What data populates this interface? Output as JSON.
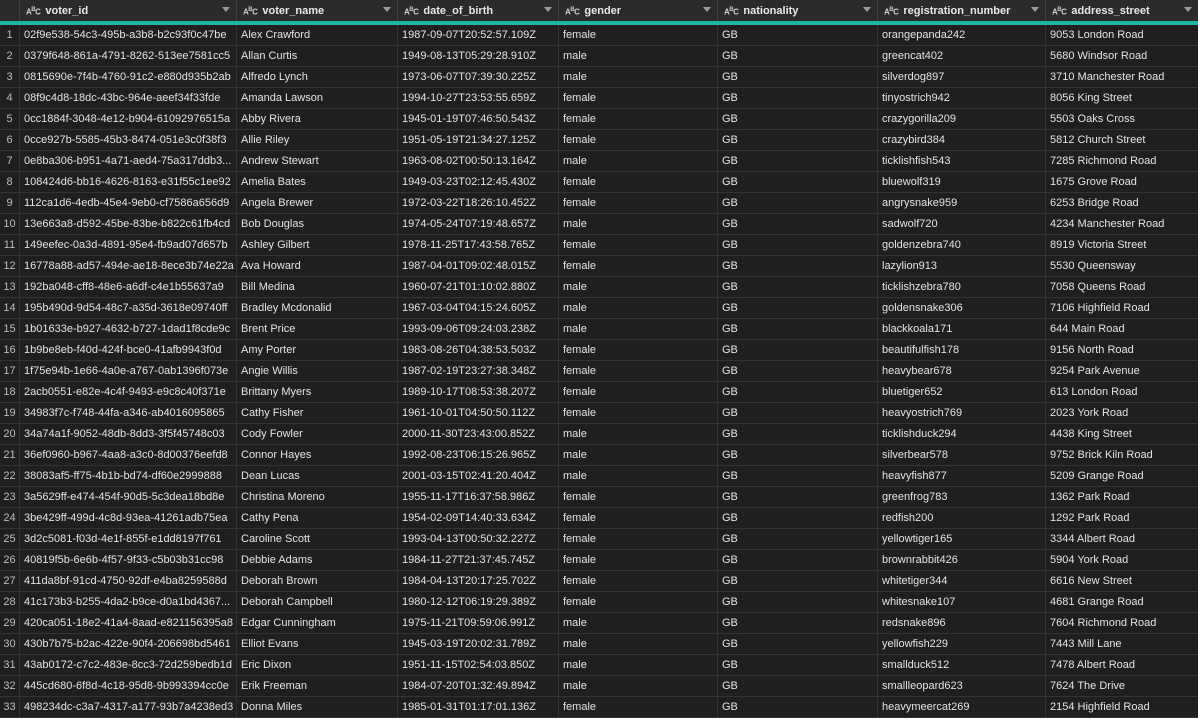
{
  "columns": [
    {
      "name": "voter_id",
      "type_icon": "ABC"
    },
    {
      "name": "voter_name",
      "type_icon": "ABC"
    },
    {
      "name": "date_of_birth",
      "type_icon": "ABC"
    },
    {
      "name": "gender",
      "type_icon": "ABC"
    },
    {
      "name": "nationality",
      "type_icon": "ABC"
    },
    {
      "name": "registration_number",
      "type_icon": "ABC"
    },
    {
      "name": "address_street",
      "type_icon": "ABC"
    }
  ],
  "rows": [
    [
      "1",
      "02f9e538-54c3-495b-a3b8-b2c93f0c47be",
      "Alex Crawford",
      "1987-09-07T20:52:57.109Z",
      "female",
      "GB",
      "orangepanda242",
      "9053 London Road"
    ],
    [
      "2",
      "0379f648-861a-4791-8262-513ee7581cc5",
      "Allan Curtis",
      "1949-08-13T05:29:28.910Z",
      "male",
      "GB",
      "greencat402",
      "5680 Windsor Road"
    ],
    [
      "3",
      "0815690e-7f4b-4760-91c2-e880d935b2ab",
      "Alfredo Lynch",
      "1973-06-07T07:39:30.225Z",
      "male",
      "GB",
      "silverdog897",
      "3710 Manchester Road"
    ],
    [
      "4",
      "08f9c4d8-18dc-43bc-964e-aeef34f33fde",
      "Amanda Lawson",
      "1994-10-27T23:53:55.659Z",
      "female",
      "GB",
      "tinyostrich942",
      "8056 King Street"
    ],
    [
      "5",
      "0cc1884f-3048-4e12-b904-61092976515a",
      "Abby Rivera",
      "1945-01-19T07:46:50.543Z",
      "female",
      "GB",
      "crazygorilla209",
      "5503 Oaks Cross"
    ],
    [
      "6",
      "0cce927b-5585-45b3-8474-051e3c0f38f3",
      "Allie Riley",
      "1951-05-19T21:34:27.125Z",
      "female",
      "GB",
      "crazybird384",
      "5812 Church Street"
    ],
    [
      "7",
      "0e8ba306-b951-4a71-aed4-75a317ddb3...",
      "Andrew Stewart",
      "1963-08-02T00:50:13.164Z",
      "male",
      "GB",
      "ticklishfish543",
      "7285 Richmond Road"
    ],
    [
      "8",
      "108424d6-bb16-4626-8163-e31f55c1ee92",
      "Amelia Bates",
      "1949-03-23T02:12:45.430Z",
      "female",
      "GB",
      "bluewolf319",
      "1675 Grove Road"
    ],
    [
      "9",
      "112ca1d6-4edb-45e4-9eb0-cf7586a656d9",
      "Angela Brewer",
      "1972-03-22T18:26:10.452Z",
      "female",
      "GB",
      "angrysnake959",
      "6253 Bridge Road"
    ],
    [
      "10",
      "13e663a8-d592-45be-83be-b822c61fb4cd",
      "Bob Douglas",
      "1974-05-24T07:19:48.657Z",
      "male",
      "GB",
      "sadwolf720",
      "4234 Manchester Road"
    ],
    [
      "11",
      "149eefec-0a3d-4891-95e4-fb9ad07d657b",
      "Ashley Gilbert",
      "1978-11-25T17:43:58.765Z",
      "female",
      "GB",
      "goldenzebra740",
      "8919 Victoria Street"
    ],
    [
      "12",
      "16778a88-ad57-494e-ae18-8ece3b74e22a",
      "Ava Howard",
      "1987-04-01T09:02:48.015Z",
      "female",
      "GB",
      "lazylion913",
      "5530 Queensway"
    ],
    [
      "13",
      "192ba048-cff8-48e6-a6df-c4e1b55637a9",
      "Bill Medina",
      "1960-07-21T01:10:02.880Z",
      "male",
      "GB",
      "ticklishzebra780",
      "7058 Queens Road"
    ],
    [
      "14",
      "195b490d-9d54-48c7-a35d-3618e09740ff",
      "Bradley Mcdonalid",
      "1967-03-04T04:15:24.605Z",
      "male",
      "GB",
      "goldensnake306",
      "7106 Highfield Road"
    ],
    [
      "15",
      "1b01633e-b927-4632-b727-1dad1f8cde9c",
      "Brent Price",
      "1993-09-06T09:24:03.238Z",
      "male",
      "GB",
      "blackkoala171",
      "644 Main Road"
    ],
    [
      "16",
      "1b9be8eb-f40d-424f-bce0-41afb9943f0d",
      "Amy Porter",
      "1983-08-26T04:38:53.503Z",
      "female",
      "GB",
      "beautifulfish178",
      "9156 North Road"
    ],
    [
      "17",
      "1f75e94b-1e66-4a0e-a767-0ab1396f073e",
      "Angie Willis",
      "1987-02-19T23:27:38.348Z",
      "female",
      "GB",
      "heavybear678",
      "9254 Park Avenue"
    ],
    [
      "18",
      "2acb0551-e82e-4c4f-9493-e9c8c40f371e",
      "Brittany Myers",
      "1989-10-17T08:53:38.207Z",
      "female",
      "GB",
      "bluetiger652",
      "613 London Road"
    ],
    [
      "19",
      "34983f7c-f748-44fa-a346-ab4016095865",
      "Cathy Fisher",
      "1961-10-01T04:50:50.112Z",
      "female",
      "GB",
      "heavyostrich769",
      "2023 York Road"
    ],
    [
      "20",
      "34a74a1f-9052-48db-8dd3-3f5f45748c03",
      "Cody Fowler",
      "2000-11-30T23:43:00.852Z",
      "male",
      "GB",
      "ticklishduck294",
      "4438 King Street"
    ],
    [
      "21",
      "36ef0960-b967-4aa8-a3c0-8d00376eefd8",
      "Connor Hayes",
      "1992-08-23T06:15:26.965Z",
      "male",
      "GB",
      "silverbear578",
      "9752 Brick Kiln Road"
    ],
    [
      "22",
      "38083af5-ff75-4b1b-bd74-df60e2999888",
      "Dean Lucas",
      "2001-03-15T02:41:20.404Z",
      "male",
      "GB",
      "heavyfish877",
      "5209 Grange Road"
    ],
    [
      "23",
      "3a5629ff-e474-454f-90d5-5c3dea18bd8e",
      "Christina Moreno",
      "1955-11-17T16:37:58.986Z",
      "female",
      "GB",
      "greenfrog783",
      "1362 Park Road"
    ],
    [
      "24",
      "3be429ff-499d-4c8d-93ea-41261adb75ea",
      "Cathy Pena",
      "1954-02-09T14:40:33.634Z",
      "female",
      "GB",
      "redfish200",
      "1292 Park Road"
    ],
    [
      "25",
      "3d2c5081-f03d-4e1f-855f-e1dd8197f761",
      "Caroline Scott",
      "1993-04-13T00:50:32.227Z",
      "female",
      "GB",
      "yellowtiger165",
      "3344 Albert Road"
    ],
    [
      "26",
      "40819f5b-6e6b-4f57-9f33-c5b03b31cc98",
      "Debbie Adams",
      "1984-11-27T21:37:45.745Z",
      "female",
      "GB",
      "brownrabbit426",
      "5904 York Road"
    ],
    [
      "27",
      "411da8bf-91cd-4750-92df-e4ba8259588d",
      "Deborah Brown",
      "1984-04-13T20:17:25.702Z",
      "female",
      "GB",
      "whitetiger344",
      "6616 New Street"
    ],
    [
      "28",
      "41c173b3-b255-4da2-b9ce-d0a1bd4367...",
      "Deborah Campbell",
      "1980-12-12T06:19:29.389Z",
      "female",
      "GB",
      "whitesnake107",
      "4681 Grange Road"
    ],
    [
      "29",
      "420ca051-18e2-41a4-8aad-e821156395a8",
      "Edgar Cunningham",
      "1975-11-21T09:59:06.991Z",
      "male",
      "GB",
      "redsnake896",
      "7604 Richmond Road"
    ],
    [
      "30",
      "430b7b75-b2ac-422e-90f4-206698bd5461",
      "Elliot Evans",
      "1945-03-19T20:02:31.789Z",
      "male",
      "GB",
      "yellowfish229",
      "7443 Mill Lane"
    ],
    [
      "31",
      "43ab0172-c7c2-483e-8cc3-72d259bedb1d",
      "Eric Dixon",
      "1951-11-15T02:54:03.850Z",
      "male",
      "GB",
      "smallduck512",
      "7478 Albert Road"
    ],
    [
      "32",
      "445cd680-6f8d-4c18-95d8-9b993394cc0e",
      "Erik Freeman",
      "1984-07-20T01:32:49.894Z",
      "male",
      "GB",
      "smallleopard623",
      "7624 The Drive"
    ],
    [
      "33",
      "498234dc-c3a7-4317-a177-93b7a4238ed3",
      "Donna Miles",
      "1985-01-31T01:17:01.136Z",
      "female",
      "GB",
      "heavymeercat269",
      "2154 Highfield Road"
    ]
  ]
}
